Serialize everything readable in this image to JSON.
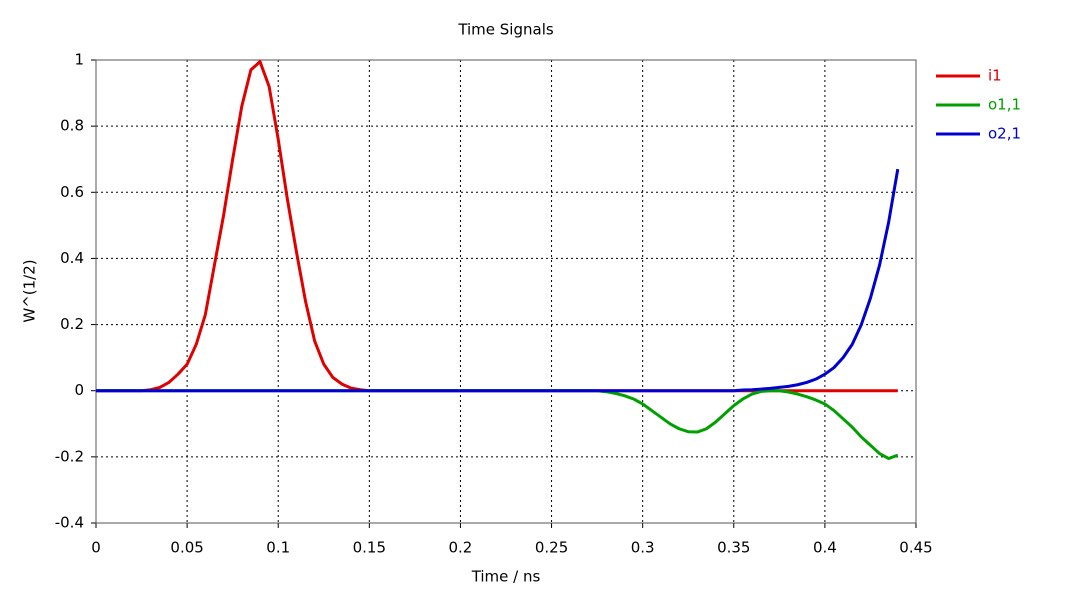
{
  "chart_data": {
    "type": "line",
    "title": "Time Signals",
    "x_label": "Time / ns",
    "y_label": "W^(1/2)",
    "x": [
      0,
      0.005,
      0.01,
      0.015,
      0.02,
      0.025,
      0.03,
      0.035,
      0.04,
      0.045,
      0.05,
      0.055,
      0.06,
      0.065,
      0.07,
      0.075,
      0.08,
      0.085,
      0.09,
      0.095,
      0.1,
      0.105,
      0.11,
      0.115,
      0.12,
      0.125,
      0.13,
      0.135,
      0.14,
      0.145,
      0.15,
      0.155,
      0.16,
      0.165,
      0.17,
      0.175,
      0.18,
      0.185,
      0.19,
      0.195,
      0.2,
      0.205,
      0.21,
      0.215,
      0.22,
      0.225,
      0.23,
      0.235,
      0.24,
      0.245,
      0.25,
      0.255,
      0.26,
      0.265,
      0.27,
      0.275,
      0.28,
      0.285,
      0.29,
      0.295,
      0.3,
      0.305,
      0.31,
      0.315,
      0.32,
      0.325,
      0.33,
      0.335,
      0.34,
      0.345,
      0.35,
      0.355,
      0.36,
      0.365,
      0.37,
      0.375,
      0.38,
      0.385,
      0.39,
      0.395,
      0.4,
      0.405,
      0.41,
      0.415,
      0.42,
      0.425,
      0.43,
      0.435,
      0.44
    ],
    "series": [
      {
        "name": "i1",
        "color": "#e00000",
        "values": [
          0,
          0,
          0,
          0,
          0,
          0,
          0.003,
          0.01,
          0.025,
          0.05,
          0.08,
          0.14,
          0.23,
          0.38,
          0.53,
          0.7,
          0.86,
          0.97,
          0.995,
          0.92,
          0.76,
          0.58,
          0.42,
          0.27,
          0.15,
          0.08,
          0.04,
          0.02,
          0.008,
          0.003,
          0,
          0,
          0,
          0,
          0,
          0,
          0,
          0,
          0,
          0,
          0,
          0,
          0,
          0,
          0,
          0,
          0,
          0,
          0,
          0,
          0,
          0,
          0,
          0,
          0,
          0,
          0,
          0,
          0,
          0,
          0,
          0,
          0,
          0,
          0,
          0,
          0,
          0,
          0,
          0,
          0,
          0,
          0,
          0,
          0,
          0,
          0,
          0,
          0,
          0,
          0,
          0,
          0,
          0,
          0,
          0,
          0,
          0,
          0
        ]
      },
      {
        "name": "o1,1",
        "color": "#00a000",
        "values": [
          0,
          0,
          0,
          0,
          0,
          0,
          0,
          0,
          0,
          0,
          0,
          0,
          0,
          0,
          0,
          0,
          0,
          0,
          0,
          0,
          0,
          0,
          0,
          0,
          0,
          0,
          0,
          0,
          0,
          0,
          0,
          0,
          0,
          0,
          0,
          0,
          0,
          0,
          0,
          0,
          0,
          0,
          0,
          0,
          0,
          0,
          0,
          0,
          0,
          0,
          0,
          0,
          0,
          0,
          0,
          0,
          -0.003,
          -0.008,
          -0.015,
          -0.025,
          -0.04,
          -0.06,
          -0.08,
          -0.1,
          -0.115,
          -0.124,
          -0.125,
          -0.115,
          -0.095,
          -0.07,
          -0.045,
          -0.025,
          -0.01,
          -0.002,
          0,
          0,
          -0.004,
          -0.01,
          -0.018,
          -0.028,
          -0.04,
          -0.06,
          -0.085,
          -0.11,
          -0.14,
          -0.165,
          -0.19,
          -0.205,
          -0.195
        ]
      },
      {
        "name": "o2,1",
        "color": "#0000d0",
        "values": [
          0,
          0,
          0,
          0,
          0,
          0,
          0,
          0,
          0,
          0,
          0,
          0,
          0,
          0,
          0,
          0,
          0,
          0,
          0,
          0,
          0,
          0,
          0,
          0,
          0,
          0,
          0,
          0,
          0,
          0,
          0,
          0,
          0,
          0,
          0,
          0,
          0,
          0,
          0,
          0,
          0,
          0,
          0,
          0,
          0,
          0,
          0,
          0,
          0,
          0,
          0,
          0,
          0,
          0,
          0,
          0,
          0,
          0,
          0,
          0,
          0,
          0,
          0,
          0,
          0,
          0,
          0,
          0,
          0,
          0,
          0,
          0.002,
          0.003,
          0.005,
          0.007,
          0.01,
          0.013,
          0.018,
          0.025,
          0.035,
          0.05,
          0.07,
          0.1,
          0.14,
          0.2,
          0.28,
          0.38,
          0.51,
          0.67
        ]
      }
    ],
    "xlim": [
      0,
      0.45
    ],
    "xticks": [
      0,
      0.05,
      0.1,
      0.15,
      0.2,
      0.25,
      0.3,
      0.35,
      0.4,
      0.45
    ],
    "ylim": [
      -0.4,
      1
    ],
    "yticks": [
      -0.4,
      -0.2,
      0,
      0.2,
      0.4,
      0.6,
      0.8,
      1
    ],
    "grid": true
  }
}
